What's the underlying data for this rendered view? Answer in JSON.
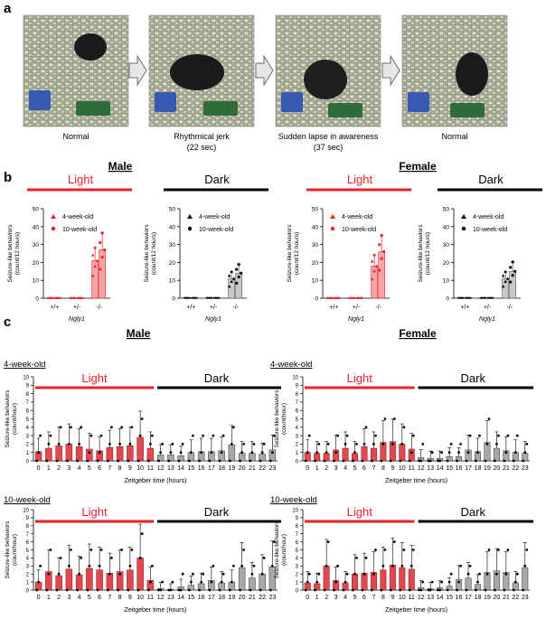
{
  "panels": {
    "a": {
      "label": "a",
      "frames": [
        {
          "caption": "Normal",
          "sub": ""
        },
        {
          "caption": "Rhythmical jerk",
          "sub": "(22 sec)"
        },
        {
          "caption": "Sudden lapse in awareness",
          "sub": "(37 sec)"
        },
        {
          "caption": "Normal",
          "sub": ""
        }
      ]
    },
    "b": {
      "label": "b"
    },
    "c": {
      "label": "c"
    }
  },
  "colors": {
    "light": "#e8222b",
    "dark": "#000000",
    "red_bar": "#f5a5a5",
    "gray_bar": "#c8c8c8",
    "deep_red_bar": "#e0474f",
    "mid_gray_bar": "#a8a8a8"
  },
  "chart_data": [
    {
      "id": "b-male-light",
      "type": "bar",
      "title": "Male",
      "phase": "Light",
      "categories": [
        "+/+",
        "+/-",
        "-/-"
      ],
      "xlabel": "Ngly1",
      "ylabel": [
        "Seizure-like behaviors",
        "(count/12 hours)"
      ],
      "ylim": [
        0,
        50
      ],
      "yticks": [
        0,
        10,
        20,
        30,
        40,
        50
      ],
      "legend": [
        "4-week-old",
        "10-week-old"
      ],
      "series": [
        {
          "name": "4-week-old",
          "values": [
            0,
            0,
            21
          ]
        },
        {
          "name": "10-week-old",
          "values": [
            0,
            0,
            27
          ]
        }
      ]
    },
    {
      "id": "b-male-dark",
      "type": "bar",
      "title": "Male",
      "phase": "Dark",
      "categories": [
        "+/+",
        "+/-",
        "-/-"
      ],
      "xlabel": "Ngly1",
      "ylabel": [
        "Seizure-like behaviors",
        "(count/12 hours)"
      ],
      "ylim": [
        0,
        50
      ],
      "yticks": [
        0,
        10,
        20,
        30,
        40,
        50
      ],
      "legend": [
        "4-week-old",
        "10-week-old"
      ],
      "series": [
        {
          "name": "4-week-old",
          "values": [
            0,
            0,
            11
          ]
        },
        {
          "name": "10-week-old",
          "values": [
            0,
            0,
            14
          ]
        }
      ]
    },
    {
      "id": "b-female-light",
      "type": "bar",
      "title": "Female",
      "phase": "Light",
      "categories": [
        "+/+",
        "+/-",
        "-/-"
      ],
      "xlabel": "Ngly1",
      "ylabel": [
        "Seizure-like behaviors",
        "(count/12 hours)"
      ],
      "ylim": [
        0,
        50
      ],
      "yticks": [
        0,
        10,
        20,
        30,
        40,
        50
      ],
      "legend": [
        "4-week-old",
        "10-week-old"
      ],
      "series": [
        {
          "name": "4-week-old",
          "values": [
            0,
            0,
            18
          ]
        },
        {
          "name": "10-week-old",
          "values": [
            0,
            0,
            26
          ]
        }
      ]
    },
    {
      "id": "b-female-dark",
      "type": "bar",
      "title": "Female",
      "phase": "Dark",
      "categories": [
        "+/+",
        "+/-",
        "-/-"
      ],
      "xlabel": "Ngly1",
      "ylabel": [
        "Seizure-like behaviors",
        "(count/12 hours)"
      ],
      "ylim": [
        0,
        50
      ],
      "yticks": [
        0,
        10,
        20,
        30,
        40,
        50
      ],
      "legend": [
        "4-week-old",
        "10-week-old"
      ],
      "series": [
        {
          "name": "4-week-old",
          "values": [
            0,
            0,
            11
          ]
        },
        {
          "name": "10-week-old",
          "values": [
            0,
            0,
            15
          ]
        }
      ]
    },
    {
      "id": "c-male-4wk",
      "type": "bar",
      "sex": "Male",
      "age": "4-week-old",
      "xlabel": "Zeitgeber time (hours)",
      "ylabel": [
        "Seizure-like behaviors",
        "(count/hour)"
      ],
      "ylim": [
        0,
        10
      ],
      "yticks": [
        0,
        1,
        2,
        3,
        4,
        5,
        6,
        7,
        8,
        9,
        10
      ],
      "light_label": "Light",
      "dark_label": "Dark",
      "categories": [
        "0",
        "1",
        "2",
        "3",
        "4",
        "5",
        "6",
        "7",
        "8",
        "9",
        "10",
        "11",
        "12",
        "13",
        "14",
        "15",
        "16",
        "17",
        "18",
        "19",
        "20",
        "21",
        "22",
        "23"
      ],
      "values": [
        1.1,
        1.5,
        1.8,
        2.0,
        1.7,
        1.4,
        1.2,
        1.6,
        1.7,
        1.8,
        2.8,
        1.5,
        0.7,
        0.7,
        0.6,
        1.0,
        1.1,
        1.1,
        1.2,
        1.9,
        0.9,
        0.9,
        0.8,
        1.3
      ]
    },
    {
      "id": "c-female-4wk",
      "type": "bar",
      "sex": "Female",
      "age": "4-week-old",
      "xlabel": "Zeitgeber time (hours)",
      "ylabel": [
        "Seizure-like behaviors",
        "(count/hour)"
      ],
      "ylim": [
        0,
        10
      ],
      "yticks": [
        0,
        1,
        2,
        3,
        4,
        5,
        6,
        7,
        8,
        9,
        10
      ],
      "light_label": "Light",
      "dark_label": "Dark",
      "categories": [
        "0",
        "1",
        "2",
        "3",
        "4",
        "5",
        "6",
        "7",
        "8",
        "9",
        "10",
        "11",
        "12",
        "13",
        "14",
        "15",
        "16",
        "17",
        "18",
        "19",
        "20",
        "21",
        "22",
        "23"
      ],
      "values": [
        1.0,
        0.9,
        0.9,
        1.3,
        1.5,
        0.9,
        1.7,
        1.5,
        2.2,
        2.3,
        2.0,
        1.4,
        0.4,
        0.3,
        0.3,
        0.5,
        0.5,
        1.3,
        1.1,
        2.2,
        1.5,
        1.2,
        1.0,
        0.9
      ]
    },
    {
      "id": "c-male-10wk",
      "type": "bar",
      "sex": "Male",
      "age": "10-week-old",
      "xlabel": "Zeitgeber time (hours)",
      "ylabel": [
        "Seizure-like behaviors",
        "(count/hour)"
      ],
      "ylim": [
        0,
        10
      ],
      "yticks": [
        0,
        1,
        2,
        3,
        4,
        5,
        6,
        7,
        8,
        9,
        10
      ],
      "light_label": "Light",
      "dark_label": "Dark",
      "categories": [
        "0",
        "1",
        "2",
        "3",
        "4",
        "5",
        "6",
        "7",
        "8",
        "9",
        "10",
        "11",
        "12",
        "13",
        "14",
        "15",
        "16",
        "17",
        "18",
        "19",
        "20",
        "21",
        "22",
        "23"
      ],
      "values": [
        1.0,
        2.3,
        1.8,
        2.6,
        1.9,
        2.7,
        2.5,
        2.1,
        2.3,
        2.5,
        4.0,
        1.2,
        0.2,
        0.1,
        0.4,
        0.6,
        0.8,
        1.2,
        0.9,
        1.0,
        2.8,
        1.5,
        2.0,
        2.9
      ]
    },
    {
      "id": "c-female-10wk",
      "type": "bar",
      "sex": "Female",
      "age": "10-week-old",
      "xlabel": "Zeitgeber time (hours)",
      "ylabel": [
        "Seizure-like behaviors",
        "(count/hour)"
      ],
      "ylim": [
        0,
        10
      ],
      "yticks": [
        0,
        1,
        2,
        3,
        4,
        5,
        6,
        7,
        8,
        9,
        10
      ],
      "light_label": "Light",
      "dark_label": "Dark",
      "categories": [
        "0",
        "1",
        "2",
        "3",
        "4",
        "5",
        "6",
        "7",
        "8",
        "9",
        "10",
        "11",
        "12",
        "13",
        "14",
        "15",
        "16",
        "17",
        "18",
        "19",
        "20",
        "21",
        "22",
        "23"
      ],
      "values": [
        0.9,
        0.8,
        3.0,
        1.2,
        0.9,
        2.0,
        2.1,
        2.2,
        2.5,
        3.1,
        2.8,
        2.6,
        0.3,
        0.2,
        0.3,
        0.5,
        1.3,
        1.5,
        0.7,
        2.2,
        2.4,
        2.2,
        0.9,
        2.8
      ]
    }
  ]
}
